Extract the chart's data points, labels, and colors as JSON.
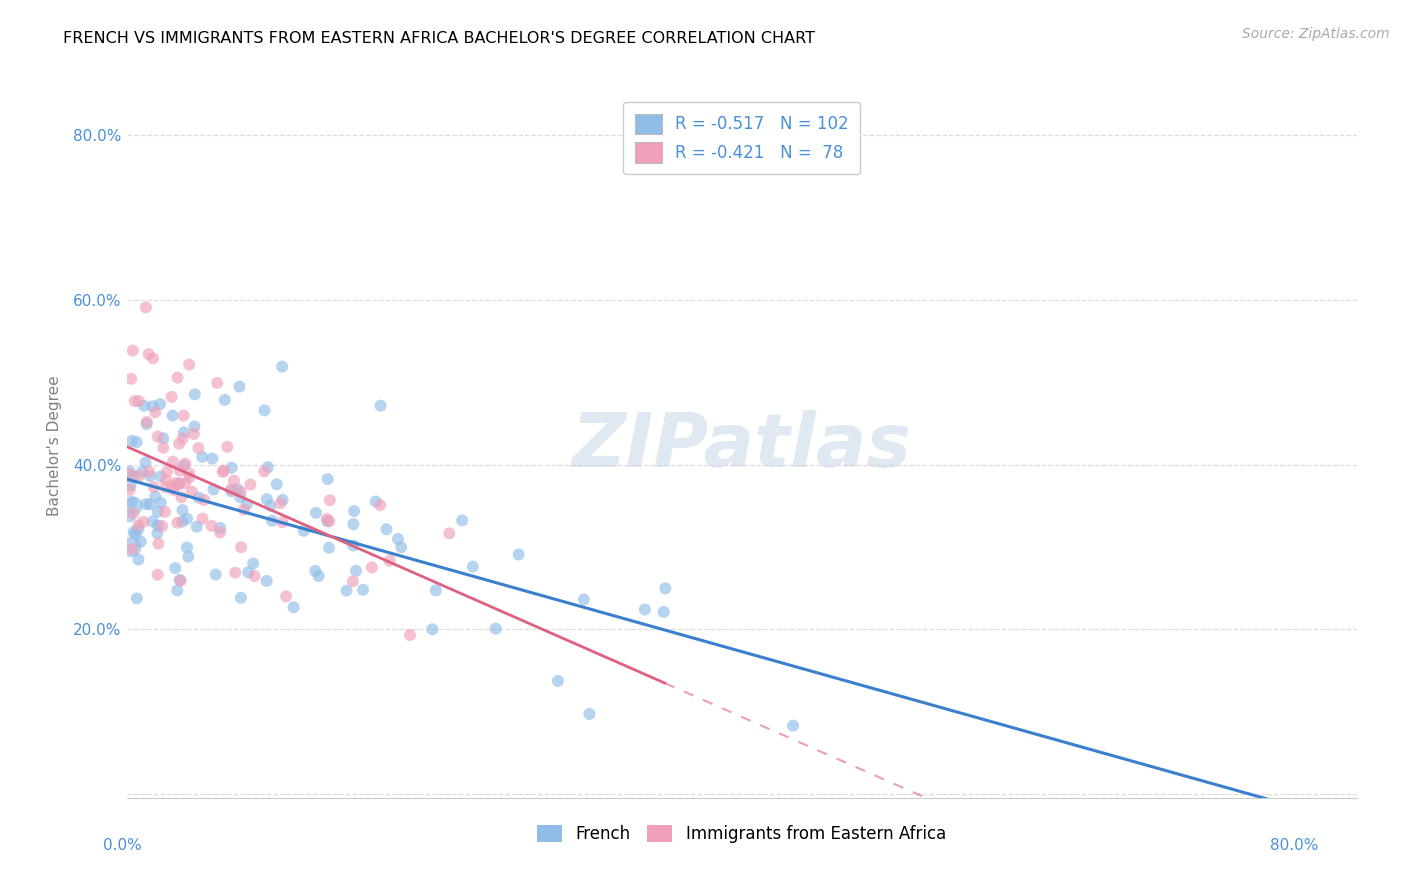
{
  "title": "FRENCH VS IMMIGRANTS FROM EASTERN AFRICA BACHELOR'S DEGREE CORRELATION CHART",
  "source": "Source: ZipAtlas.com",
  "ylabel": "Bachelor's Degree",
  "x_range": [
    0.0,
    0.8
  ],
  "y_range": [
    -0.005,
    0.85
  ],
  "y_ticks": [
    0.0,
    0.2,
    0.4,
    0.6,
    0.8
  ],
  "y_tick_labels": [
    "",
    "20.0%",
    "40.0%",
    "60.0%",
    "80.0%"
  ],
  "x_ticks": [
    0.0,
    0.1,
    0.2,
    0.3,
    0.4,
    0.5,
    0.6,
    0.7,
    0.8
  ],
  "r_french": -0.517,
  "n_french": 102,
  "r_eastern": -0.421,
  "n_eastern": 78,
  "blue_color": "#90bce8",
  "pink_color": "#f0a0b8",
  "blue_line_color": "#3a80cc",
  "pink_line_color": "#e06080",
  "watermark": "ZIPatlas",
  "axis_color": "#4a90d9",
  "french_intercept": 0.375,
  "french_slope": -0.46,
  "eastern_intercept": 0.435,
  "eastern_slope": -1.1
}
